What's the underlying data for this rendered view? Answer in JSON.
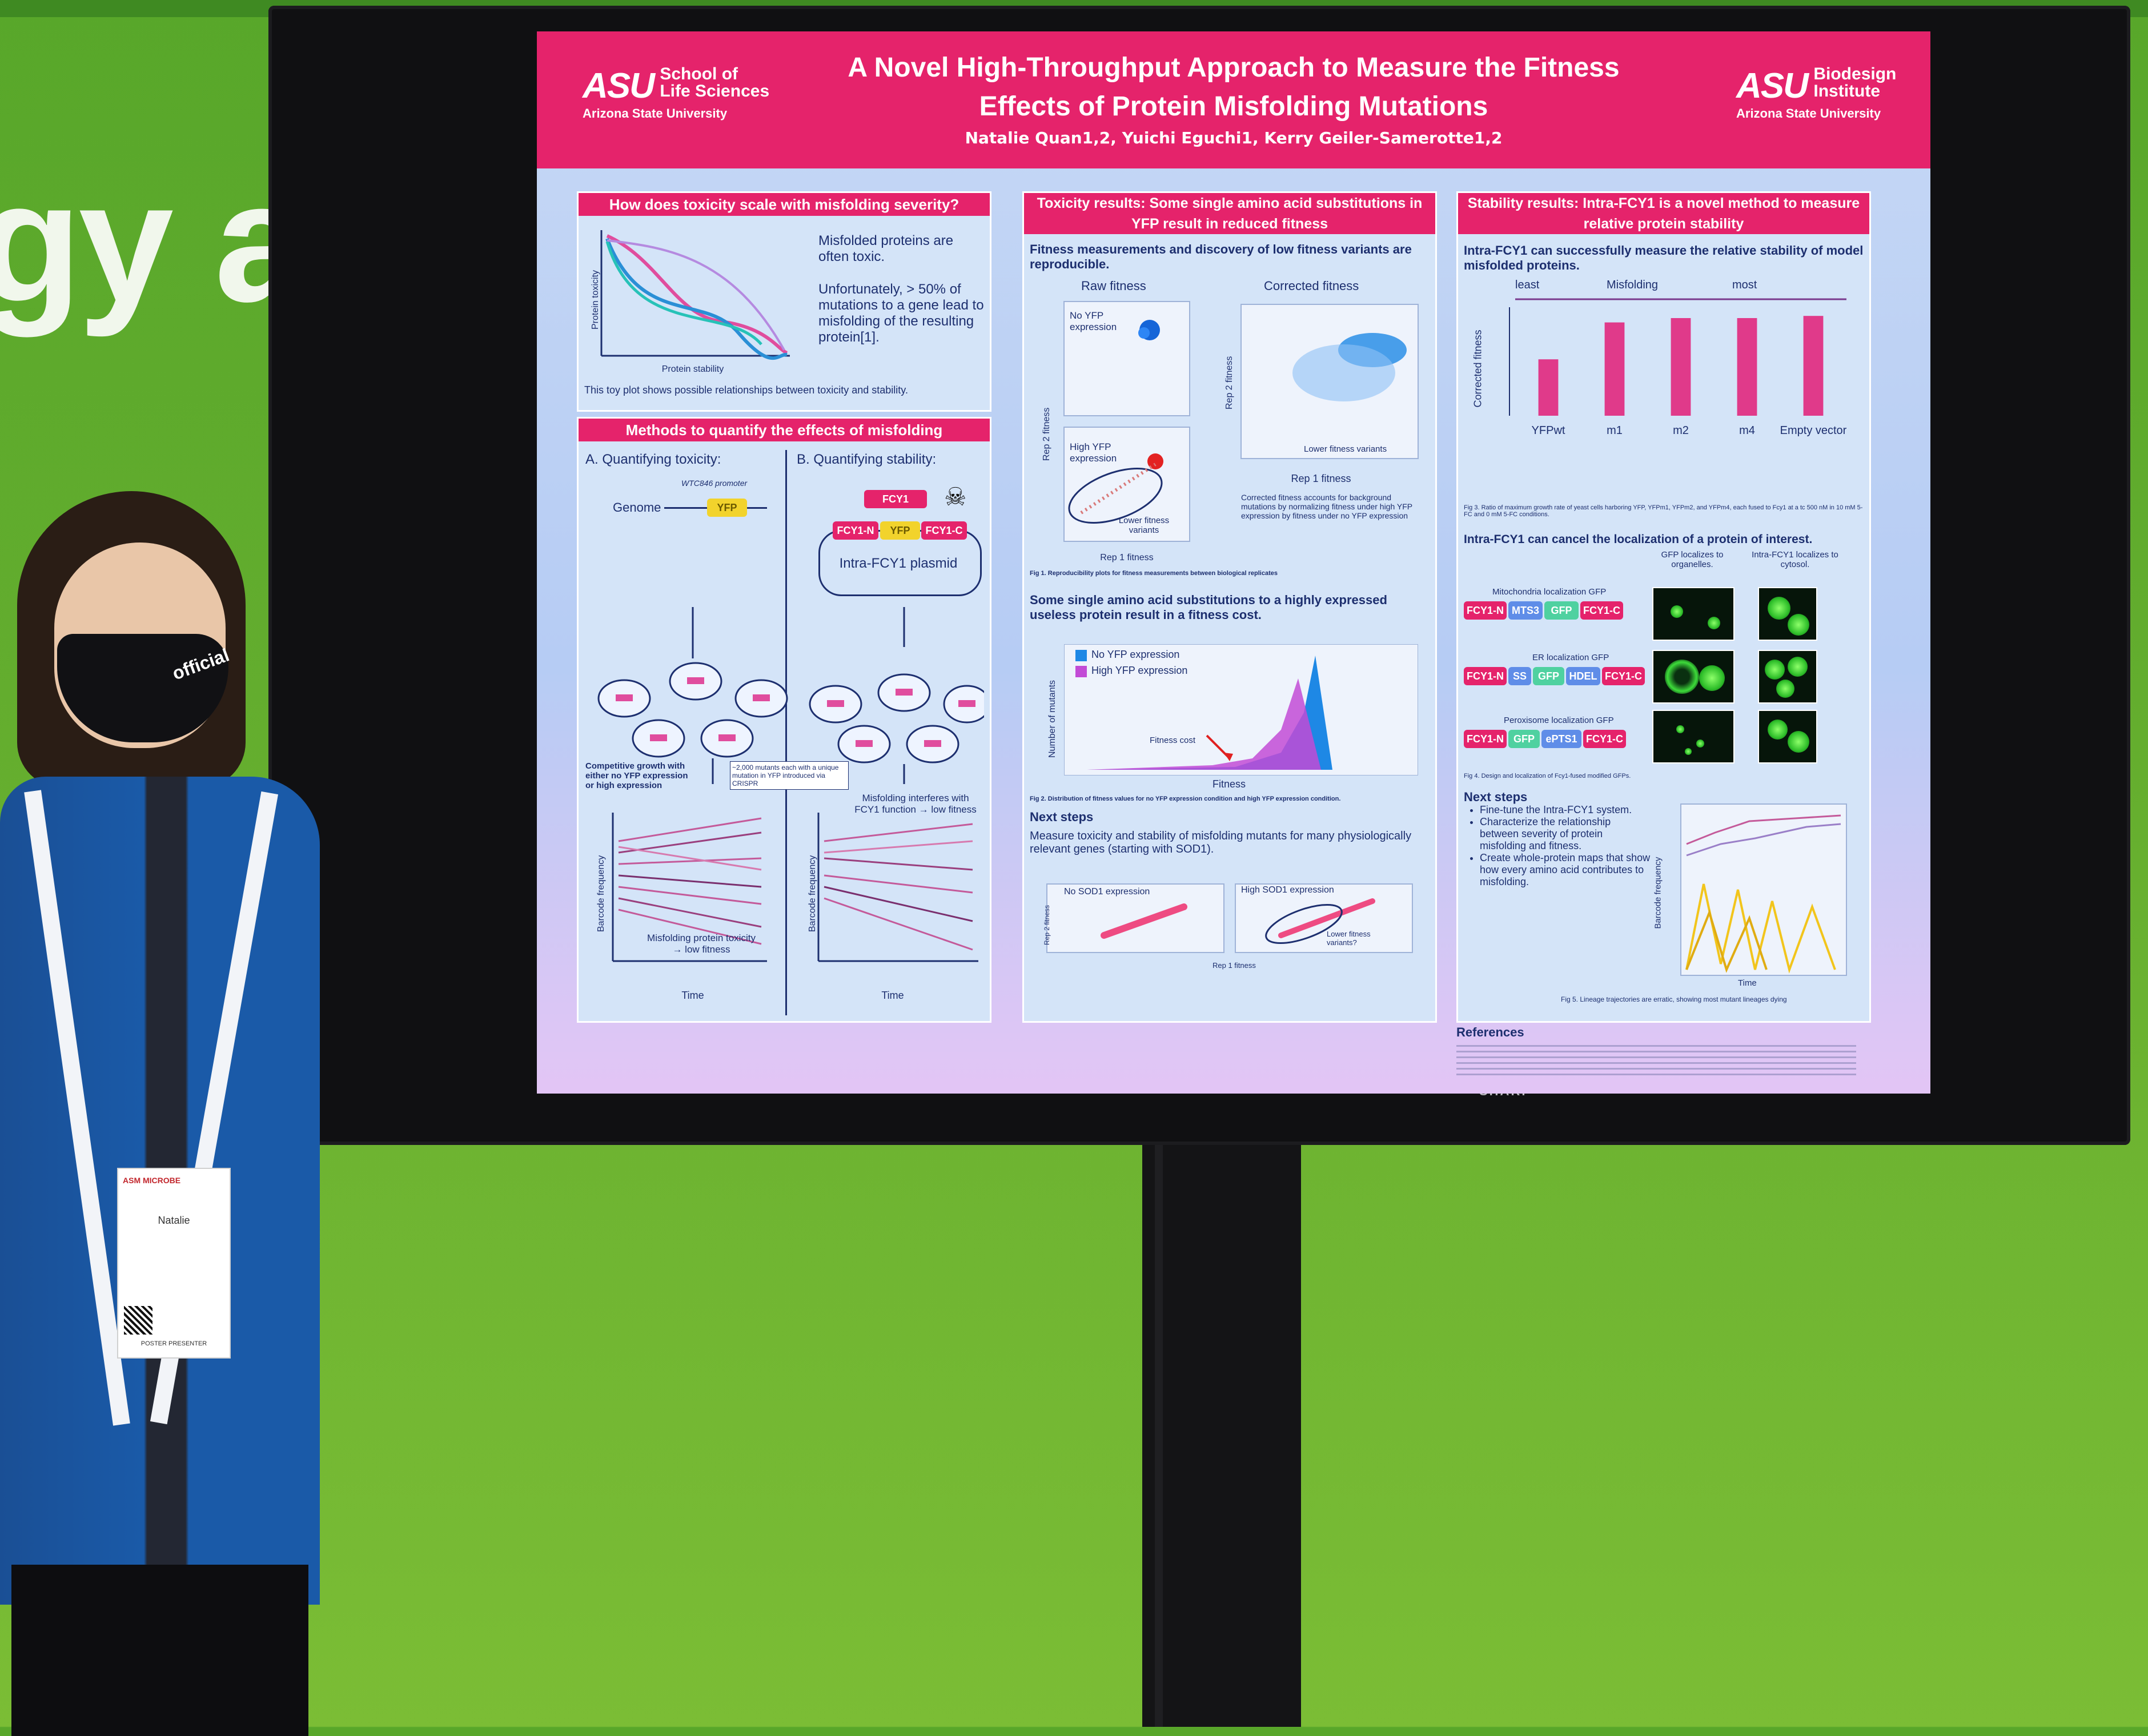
{
  "backdrop": {
    "text": "gy an"
  },
  "monitor": {
    "brand": "SHARP"
  },
  "poster": {
    "logo_left": {
      "mark": "ASU",
      "unit_line1": "School of",
      "unit_line2": "Life Sciences",
      "university": "Arizona State University"
    },
    "logo_right": {
      "mark": "ASU",
      "unit_line1": "Biodesign",
      "unit_line2": "Institute",
      "university": "Arizona State University"
    },
    "title_line1": "A Novel High-Throughput Approach to Measure the Fitness",
    "title_line2": "Effects of Protein Misfolding Mutations",
    "authors": "Natalie Quan1,2, Yuichi Eguchi1, Kerry Geiler-Samerotte1,2",
    "panels": {
      "toxicity_question": {
        "heading": "How does toxicity scale with misfolding severity?",
        "text1": "Misfolded proteins are often toxic.",
        "text2": "Unfortunately, > 50% of mutations to a gene lead to misfolding of the resulting protein[1].",
        "ylabel": "Protein toxicity",
        "xlabel": "Protein stability",
        "caption": "This toy plot shows possible relationships between toxicity and stability."
      },
      "methods": {
        "heading": "Methods to quantify the effects of misfolding",
        "sub_a": "A. Quantifying toxicity:",
        "sub_b": "B. Quantifying stability:",
        "genome": "Genome",
        "promoter": "WTC846 promoter",
        "yfp": "YFP",
        "fcy1": "FCY1",
        "fcy1n": "FCY1-N",
        "fcy1c": "FCY1-C",
        "plasmid": "Intra-FCY1 plasmid",
        "growth_note": "Competitive growth with either no YFP expression or high expression",
        "mutants_note": "~2,000 mutants each with a unique mutation in YFP introduced via CRISPR",
        "a_ylabel": "Barcode frequency",
        "a_xlabel": "Time",
        "a_result": "Misfolding protein toxicity → low fitness",
        "b_ylabel": "Barcode frequency",
        "b_xlabel": "Time",
        "b_result": "Misfolding interferes with FCY1 function → low fitness"
      },
      "toxicity_results": {
        "heading": "Toxicity results: Some single amino acid substitutions in YFP result in reduced fitness",
        "lead": "Fitness measurements and discovery of low fitness variants are reproducible.",
        "raw": "Raw fitness",
        "corrected": "Corrected fitness",
        "no_yfp": "No YFP expression",
        "high_yfp": "High YFP expression",
        "lower_variants": "Lower fitness variants",
        "lower_variants_2": "Lower fitness variants",
        "rep1": "Rep 1 fitness",
        "rep2": "Rep 2 fitness",
        "corrected_note": "Corrected fitness accounts for background mutations by normalizing fitness under high YFP expression by fitness under no YFP expression",
        "fig1": "Fig 1. Reproducibility plots for fitness measurements between biological replicates",
        "subhead": "Some single amino acid substitutions to a highly expressed useless protein result in a fitness cost.",
        "legend_no": "No YFP expression",
        "legend_high": "High YFP expression",
        "hist_ylabel": "Number of mutants",
        "hist_xlabel": "Fitness",
        "fitness_cost": "Fitness cost",
        "fig2": "Fig 2. Distribution of fitness values for no YFP expression condition and high YFP expression condition.",
        "next_head": "Next steps",
        "next_text": "Measure toxicity and stability of misfolding mutants for many physiologically relevant genes (starting with SOD1).",
        "no_sod1": "No SOD1 expression",
        "high_sod1": "High SOD1 expression",
        "lower_q": "Lower fitness variants?"
      },
      "stability_results": {
        "heading": "Stability results: Intra-FCY1 is a novel method to measure relative protein stability",
        "lead": "Intra-FCY1 can successfully measure the relative stability of model misfolded proteins.",
        "least": "least",
        "misfolding": "Misfolding",
        "most": "most",
        "ylabel": "Corrected fitness",
        "fig3": "Fig 3. Ratio of maximum growth rate of yeast cells harboring YFP, YFPm1, YFPm2, and YFPm4, each fused to Fcy1 at a tc 500 nM in 10 mM 5-FC and 0 mM 5-FC conditions.",
        "localization_head": "Intra-FCY1 can cancel the localization of a protein of interest.",
        "gfp_organelles": "GFP localizes to organelles.",
        "gfp_cytosol": "Intra-FCY1 localizes to cytosol.",
        "mito": "Mitochondria localization GFP",
        "er": "ER localization GFP",
        "perox": "Peroxisome localization GFP",
        "gfp": "GFP",
        "mts3": "MTS3",
        "ss": "SS",
        "hdel": "HDEL",
        "epts1": "ePTS1",
        "fig4": "Fig 4. Design and localization of Fcy1-fused modified GFPs.",
        "next_head": "Next steps",
        "bullets": [
          "Fine-tune the Intra-FCY1 system.",
          "Characterize the relationship between severity of protein misfolding and fitness.",
          "Create whole-protein maps that show how every amino acid contributes to misfolding."
        ],
        "lineage_ylabel": "Barcode frequency",
        "lineage_xlabel": "Time",
        "fig5": "Fig 5. Lineage trajectories are erratic, showing most mutant lineages dying"
      },
      "references": {
        "heading": "References"
      }
    }
  },
  "chart_data": {
    "type": "bar",
    "categories": [
      "YFPwt",
      "m1",
      "m2",
      "m4",
      "Empty vector"
    ],
    "values": [
      0.52,
      0.86,
      0.9,
      0.9,
      0.92
    ],
    "ylabel": "Corrected fitness",
    "ylim": [
      0,
      1.0
    ]
  },
  "person": {
    "mask_logo": "official",
    "badge_name": "Natalie",
    "badge_org": "ASM MICROBE",
    "badge_role": "POSTER PRESENTER"
  },
  "colors": {
    "poster_pink": "#e5236b",
    "poster_blue": "#c6d8f5",
    "backdrop_green": "#63ad2e",
    "bar_pink": "#e03a8a"
  }
}
